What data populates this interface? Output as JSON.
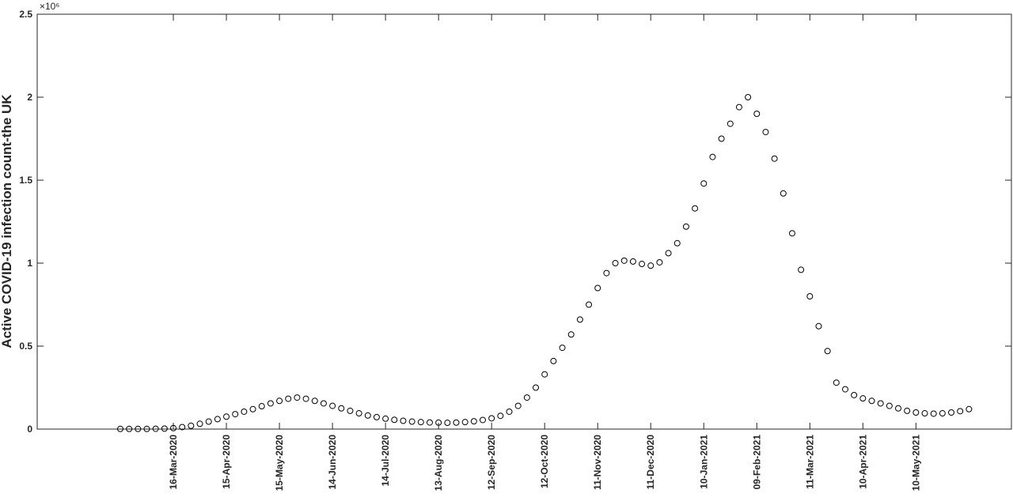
{
  "chart_data": {
    "type": "scatter",
    "y_label": "Active COVID-19 infection count-the UK",
    "y_exponent": "×10⁶",
    "marker_color": "#000000",
    "grid": false,
    "x": [
      "15-Feb-2020",
      "20-Feb-2020",
      "25-Feb-2020",
      "01-Mar-2020",
      "06-Mar-2020",
      "11-Mar-2020",
      "16-Mar-2020",
      "21-Mar-2020",
      "26-Mar-2020",
      "31-Mar-2020",
      "05-Apr-2020",
      "10-Apr-2020",
      "15-Apr-2020",
      "20-Apr-2020",
      "25-Apr-2020",
      "30-Apr-2020",
      "05-May-2020",
      "10-May-2020",
      "15-May-2020",
      "20-May-2020",
      "25-May-2020",
      "30-May-2020",
      "04-Jun-2020",
      "09-Jun-2020",
      "14-Jun-2020",
      "19-Jun-2020",
      "24-Jun-2020",
      "29-Jun-2020",
      "04-Jul-2020",
      "09-Jul-2020",
      "14-Jul-2020",
      "19-Jul-2020",
      "24-Jul-2020",
      "29-Jul-2020",
      "03-Aug-2020",
      "08-Aug-2020",
      "13-Aug-2020",
      "18-Aug-2020",
      "23-Aug-2020",
      "28-Aug-2020",
      "02-Sep-2020",
      "07-Sep-2020",
      "12-Sep-2020",
      "17-Sep-2020",
      "22-Sep-2020",
      "27-Sep-2020",
      "02-Oct-2020",
      "07-Oct-2020",
      "12-Oct-2020",
      "17-Oct-2020",
      "22-Oct-2020",
      "27-Oct-2020",
      "01-Nov-2020",
      "06-Nov-2020",
      "11-Nov-2020",
      "16-Nov-2020",
      "21-Nov-2020",
      "26-Nov-2020",
      "01-Dec-2020",
      "06-Dec-2020",
      "11-Dec-2020",
      "16-Dec-2020",
      "21-Dec-2020",
      "26-Dec-2020",
      "31-Dec-2020",
      "05-Jan-2021",
      "10-Jan-2021",
      "15-Jan-2021",
      "20-Jan-2021",
      "25-Jan-2021",
      "30-Jan-2021",
      "04-Feb-2021",
      "09-Feb-2021",
      "14-Feb-2021",
      "19-Feb-2021",
      "24-Feb-2021",
      "01-Mar-2021",
      "06-Mar-2021",
      "11-Mar-2021",
      "16-Mar-2021",
      "21-Mar-2021",
      "26-Mar-2021",
      "31-Mar-2021",
      "05-Apr-2021",
      "10-Apr-2021",
      "15-Apr-2021",
      "20-Apr-2021",
      "25-Apr-2021",
      "30-Apr-2021",
      "05-May-2021",
      "10-May-2021",
      "15-May-2021",
      "20-May-2021",
      "25-May-2021",
      "30-May-2021",
      "04-Jun-2021",
      "09-Jun-2021"
    ],
    "values": [
      1000,
      1000,
      1000,
      1000,
      2000,
      3000,
      6000,
      12000,
      20000,
      32000,
      45000,
      60000,
      75000,
      90000,
      105000,
      120000,
      138000,
      155000,
      170000,
      183000,
      190000,
      183000,
      170000,
      155000,
      140000,
      125000,
      110000,
      95000,
      82000,
      72000,
      63000,
      56000,
      50000,
      45000,
      42000,
      40000,
      39000,
      38000,
      39000,
      42000,
      47000,
      55000,
      65000,
      80000,
      105000,
      140000,
      190000,
      250000,
      330000,
      410000,
      490000,
      570000,
      660000,
      750000,
      850000,
      940000,
      1000000,
      1015000,
      1010000,
      995000,
      985000,
      1005000,
      1060000,
      1120000,
      1220000,
      1330000,
      1480000,
      1640000,
      1750000,
      1840000,
      1940000,
      2000000,
      1900000,
      1790000,
      1630000,
      1420000,
      1180000,
      960000,
      800000,
      620000,
      470000,
      280000,
      240000,
      205000,
      185000,
      170000,
      155000,
      140000,
      125000,
      110000,
      100000,
      95000,
      93000,
      95000,
      100000,
      108000,
      120000
    ],
    "xlim": [
      "30-Dec-2019",
      "03-Jul-2021"
    ],
    "xticks": [
      "16-Mar-2020",
      "15-Apr-2020",
      "15-May-2020",
      "14-Jun-2020",
      "14-Jul-2020",
      "13-Aug-2020",
      "12-Sep-2020",
      "12-Oct-2020",
      "11-Nov-2020",
      "11-Dec-2020",
      "10-Jan-2021",
      "09-Feb-2021",
      "11-Mar-2021",
      "10-Apr-2021",
      "10-May-2021"
    ],
    "ylim": [
      0,
      2500000
    ],
    "yticks": [
      0,
      {
        "value": 500000,
        "label": "0.5"
      },
      {
        "value": 1000000,
        "label": "1"
      },
      {
        "value": 1500000,
        "label": "1.5"
      },
      {
        "value": 2000000,
        "label": "2"
      },
      {
        "value": 2500000,
        "label": "2.5"
      }
    ]
  }
}
